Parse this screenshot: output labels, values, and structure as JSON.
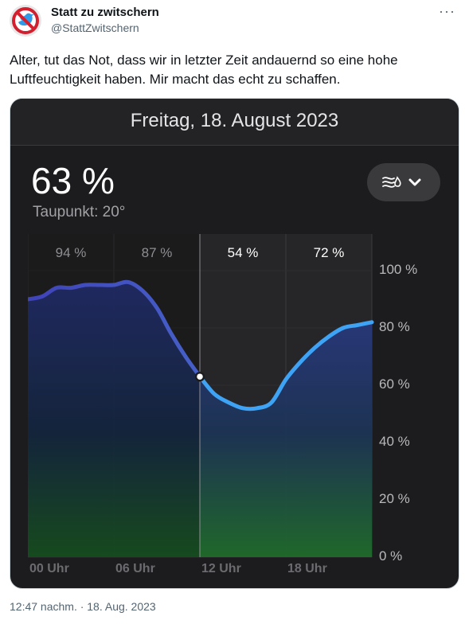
{
  "tweet": {
    "author_name": "Statt zu zwitschern",
    "author_handle": "@StattZwitschern",
    "more_icon": "more-icon",
    "text": "Alter, tut das Not, dass wir in letzter Zeit andauernd so eine hohe Luftfeuchtigkeit haben. Mir macht das echt zu schaffen.",
    "timestamp": "12:47 nachm. · 18. Aug. 2023"
  },
  "weather_card": {
    "date": "Freitag, 18. August 2023",
    "current_value": "63 %",
    "dew_point": "Taupunkt: 20°",
    "toggle_icons": [
      "humidity-icon",
      "chevron-down-icon"
    ]
  },
  "chart_data": {
    "type": "area",
    "title": "",
    "xlabel": "",
    "ylabel": "",
    "ylim": [
      0,
      100
    ],
    "yticks": [
      "100 %",
      "80 %",
      "60 %",
      "40 %",
      "20 %",
      "0 %"
    ],
    "xticks": [
      "00 Uhr",
      "06 Uhr",
      "12 Uhr",
      "18 Uhr"
    ],
    "period_labels": [
      "94 %",
      "87 %",
      "54 %",
      "72 %"
    ],
    "x": [
      "00:00",
      "01:00",
      "02:00",
      "03:00",
      "04:00",
      "05:00",
      "06:00",
      "07:00",
      "08:00",
      "09:00",
      "10:00",
      "11:00",
      "12:00",
      "13:00",
      "14:00",
      "15:00",
      "16:00",
      "17:00",
      "18:00",
      "19:00",
      "20:00",
      "21:00",
      "22:00",
      "23:00",
      "24:00"
    ],
    "values": [
      90,
      91,
      94,
      94,
      95,
      95,
      95,
      96,
      93,
      87,
      78,
      70,
      63,
      57,
      54,
      52,
      52,
      54,
      62,
      68,
      73,
      77,
      80,
      81,
      82
    ],
    "current_marker": {
      "x": "12:00",
      "value": 63
    },
    "colors": {
      "line_past": "#4a4fc4",
      "line_future": "#3fa3f5",
      "fill_top": "#2c3a8a",
      "fill_bottom": "#1f6b2a"
    }
  }
}
